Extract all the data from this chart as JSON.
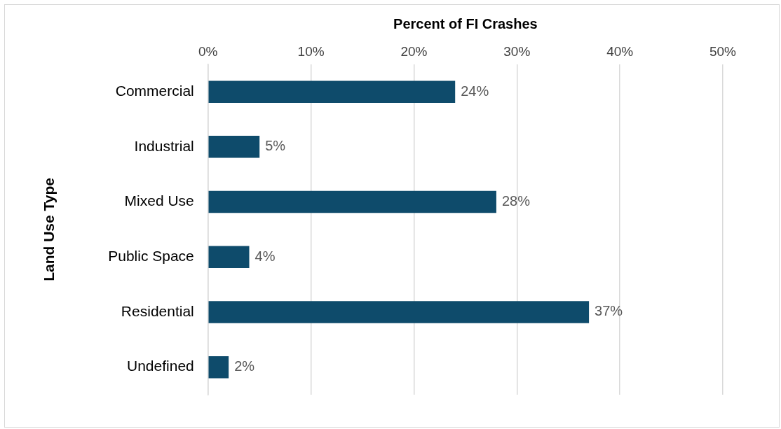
{
  "chart_data": {
    "type": "bar",
    "orientation": "horizontal",
    "xlabel": "Percent of FI Crashes",
    "ylabel": "Land Use Type",
    "categories": [
      "Commercial",
      "Industrial",
      "Mixed Use",
      "Public Space",
      "Residential",
      "Undefined"
    ],
    "values": [
      24,
      5,
      28,
      4,
      37,
      2
    ],
    "value_labels": [
      "24%",
      "5%",
      "28%",
      "4%",
      "37%",
      "2%"
    ],
    "color": "#0e4b6b",
    "xlim": [
      0,
      50
    ],
    "xticks": [
      {
        "value": 0,
        "label": "0%"
      },
      {
        "value": 10,
        "label": "10%"
      },
      {
        "value": 20,
        "label": "20%"
      },
      {
        "value": 30,
        "label": "30%"
      },
      {
        "value": 40,
        "label": "40%"
      },
      {
        "value": 50,
        "label": "50%"
      }
    ],
    "grid": "x",
    "legend": false
  }
}
